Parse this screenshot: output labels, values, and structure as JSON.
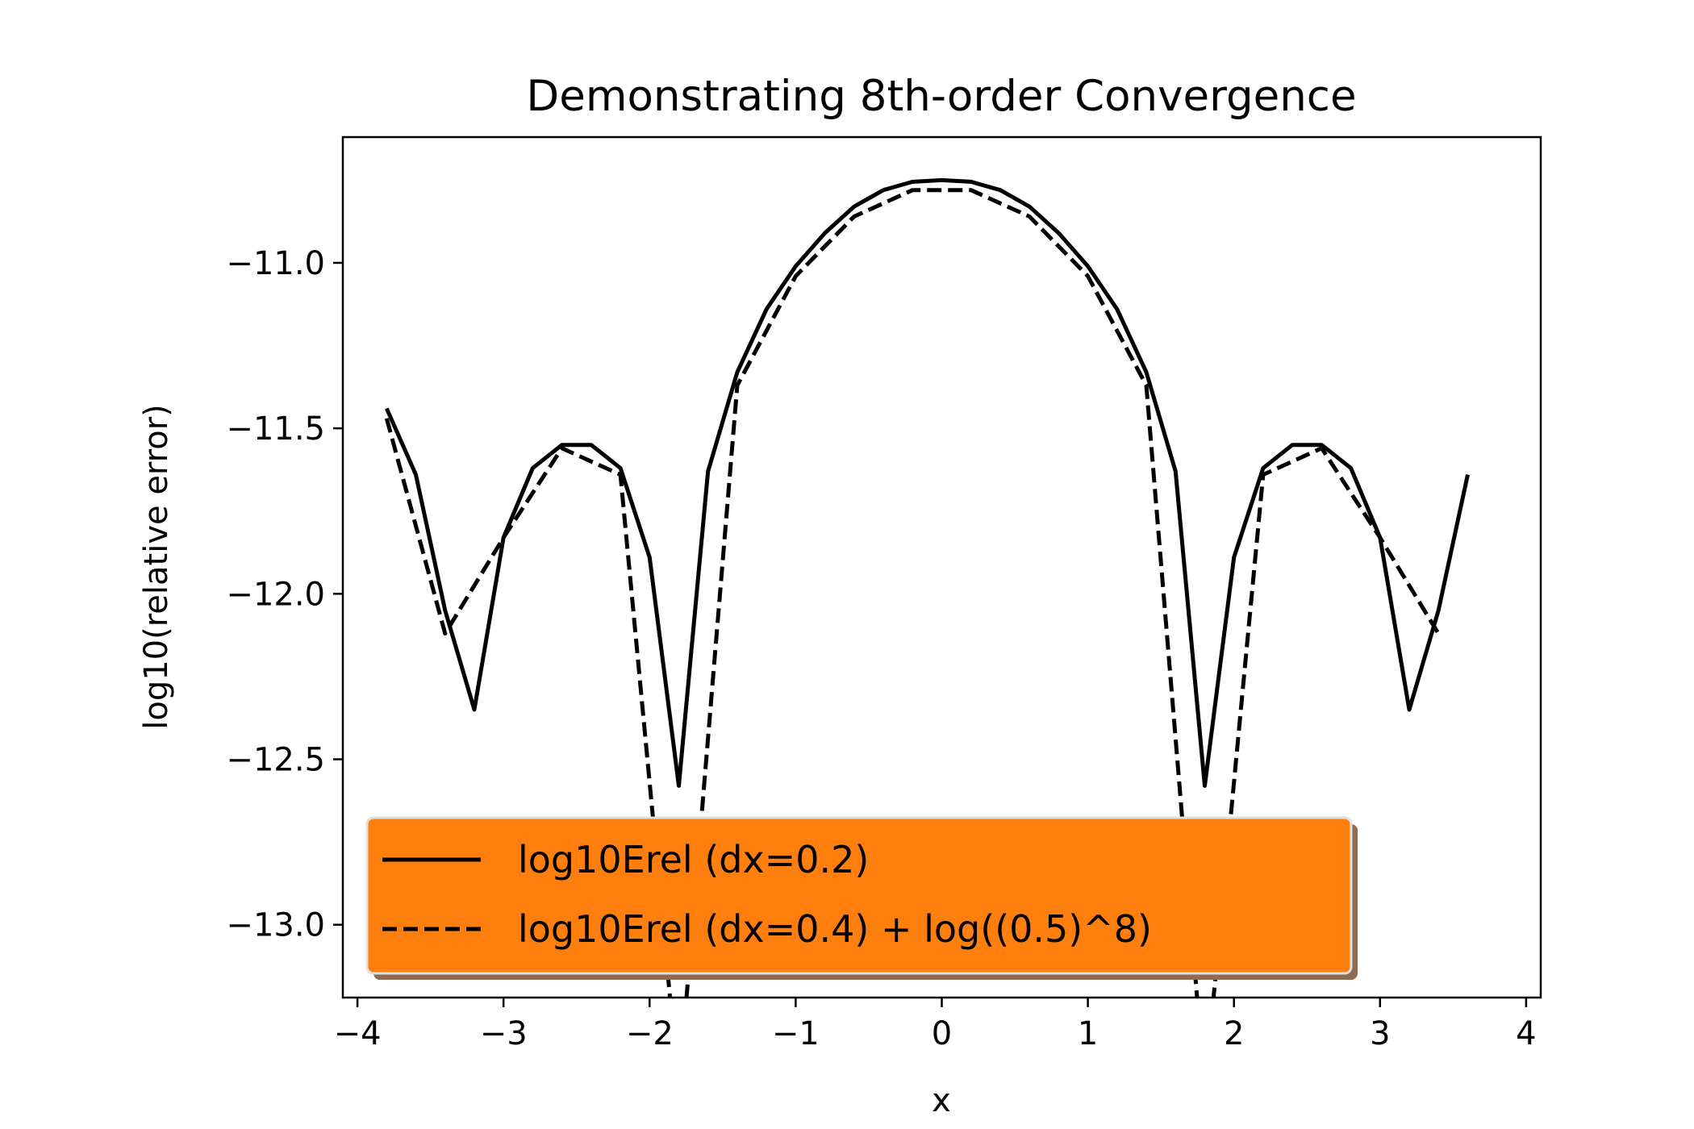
{
  "chart_data": {
    "type": "line",
    "title": "Demonstrating 8th-order Convergence",
    "xlabel": "x",
    "ylabel": "log10(relative error)",
    "xlim": [
      -4.1,
      4.1
    ],
    "ylim": [
      -13.22,
      -10.62
    ],
    "xticks": [
      -4,
      -3,
      -2,
      -1,
      0,
      1,
      2,
      3,
      4
    ],
    "xtick_labels": [
      "−4",
      "−3",
      "−2",
      "−1",
      "0",
      "1",
      "2",
      "3",
      "4"
    ],
    "yticks": [
      -11.0,
      -11.5,
      -12.0,
      -12.5,
      -13.0
    ],
    "ytick_labels": [
      "−11.0",
      "−11.5",
      "−12.0",
      "−12.5",
      "−13.0"
    ],
    "grid": false,
    "legend": {
      "placement": "lower-left",
      "facecolor": "#ff7f0e",
      "shadowcolor": "#8c6c53"
    },
    "series": [
      {
        "name": "log10Erel (dx=0.2)",
        "style": "solid",
        "color": "#000000",
        "x": [
          -3.8,
          -3.6,
          -3.4,
          -3.2,
          -3.0,
          -2.8,
          -2.6,
          -2.4,
          -2.2,
          -2.0,
          -1.8,
          -1.6,
          -1.4,
          -1.2,
          -1.0,
          -0.8,
          -0.6,
          -0.4,
          -0.2,
          0.0,
          0.2,
          0.4,
          0.6,
          0.8,
          1.0,
          1.2,
          1.4,
          1.6,
          1.8,
          2.0,
          2.2,
          2.4,
          2.6,
          2.8,
          3.0,
          3.2,
          3.4,
          3.6
        ],
        "y": [
          -11.44,
          -11.64,
          -12.05,
          -12.35,
          -11.83,
          -11.62,
          -11.55,
          -11.55,
          -11.62,
          -11.89,
          -12.58,
          -11.63,
          -11.33,
          -11.14,
          -11.01,
          -10.91,
          -10.83,
          -10.78,
          -10.755,
          -10.75,
          -10.755,
          -10.78,
          -10.83,
          -10.91,
          -11.01,
          -11.14,
          -11.33,
          -11.63,
          -12.58,
          -11.89,
          -11.62,
          -11.55,
          -11.55,
          -11.62,
          -11.83,
          -12.35,
          -12.05,
          -11.64
        ]
      },
      {
        "name": "log10Erel (dx=0.4) + log((0.5)^8)",
        "style": "dashed",
        "color": "#000000",
        "x": [
          -3.8,
          -3.4,
          -3.0,
          -2.6,
          -2.2,
          -1.8,
          -1.4,
          -1.0,
          -0.6,
          -0.2,
          0.2,
          0.6,
          1.0,
          1.4,
          1.8,
          2.2,
          2.6,
          3.0,
          3.4
        ],
        "y": [
          -11.47,
          -12.12,
          -11.83,
          -11.56,
          -11.64,
          -13.5,
          -11.37,
          -11.04,
          -10.86,
          -10.78,
          -10.78,
          -10.86,
          -11.04,
          -11.37,
          -13.5,
          -11.64,
          -11.56,
          -11.83,
          -12.12
        ]
      }
    ]
  }
}
